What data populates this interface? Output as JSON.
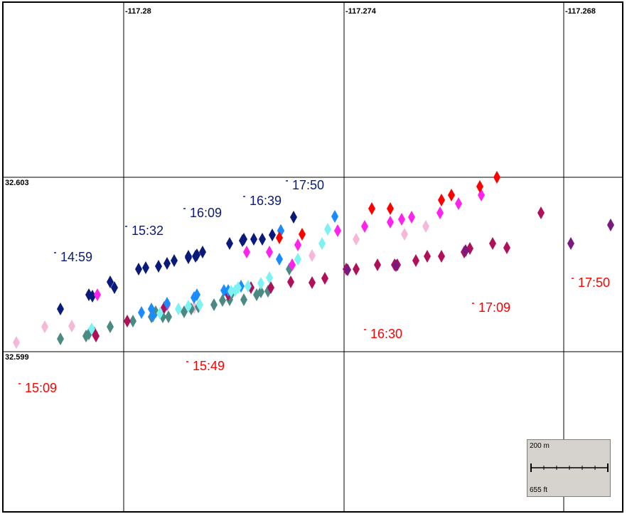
{
  "map": {
    "longitude_labels": [
      "-117.28",
      "-117.274",
      "-117.268"
    ],
    "latitude_labels": [
      "32.603",
      "32.599"
    ],
    "scale": {
      "metric": "200 m",
      "imperial": "655 ft"
    }
  },
  "colors": {
    "navy": "#0a1a7a",
    "red": "#ff0000",
    "magenta": "#ff22ee",
    "pink": "#f5b8d6",
    "crimson": "#b0105a",
    "purple": "#7a1a80",
    "teal": "#4a8a82",
    "cyan": "#7cf2f2",
    "blue": "#1a8cff"
  },
  "time_labels": [
    {
      "text": "14:59",
      "group": "navy"
    },
    {
      "text": "15:32",
      "group": "navy"
    },
    {
      "text": "16:09",
      "group": "navy"
    },
    {
      "text": "16:39",
      "group": "navy"
    },
    {
      "text": "17:50",
      "group": "navy"
    },
    {
      "text": "15:09",
      "group": "red"
    },
    {
      "text": "15:49",
      "group": "red"
    },
    {
      "text": "16:30",
      "group": "red"
    },
    {
      "text": "17:09",
      "group": "red"
    },
    {
      "text": "17:50",
      "group": "red"
    }
  ],
  "markers": [
    {
      "color": "pink",
      "count": 9
    },
    {
      "color": "teal",
      "count": 21
    },
    {
      "color": "navy",
      "count": 23
    },
    {
      "color": "magenta",
      "count": 14
    },
    {
      "color": "crimson",
      "count": 23
    },
    {
      "color": "blue",
      "count": 12
    },
    {
      "color": "cyan",
      "count": 14
    },
    {
      "color": "red",
      "count": 8
    },
    {
      "color": "purple",
      "count": 5
    }
  ]
}
